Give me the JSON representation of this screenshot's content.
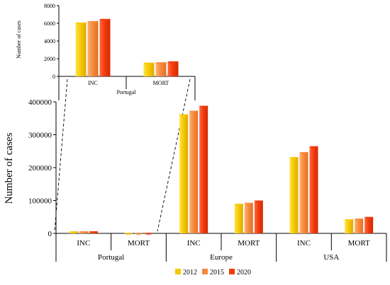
{
  "chart_data": [
    {
      "type": "bar",
      "region": "Portugal",
      "ylabel": "Number of cases",
      "ylim": [
        0,
        8000
      ],
      "yticks": [
        "0",
        "2000",
        "4000",
        "6000",
        "8000"
      ],
      "categories": [
        "INC",
        "MORT"
      ],
      "series": [
        {
          "name": "2012",
          "values": [
            6100,
            1550
          ]
        },
        {
          "name": "2015",
          "values": [
            6250,
            1600
          ]
        },
        {
          "name": "2020",
          "values": [
            6500,
            1700
          ]
        }
      ]
    },
    {
      "type": "bar",
      "ylabel": "Number of cases",
      "ylim": [
        0,
        400000
      ],
      "yticks": [
        "0",
        "100000",
        "200000",
        "300000",
        "400000"
      ],
      "groups": [
        {
          "name": "Portugal",
          "categories": [
            "INC",
            "MORT"
          ]
        },
        {
          "name": "Europe",
          "categories": [
            "INC",
            "MORT"
          ]
        },
        {
          "name": "USA",
          "categories": [
            "INC",
            "MORT"
          ]
        }
      ],
      "series": [
        {
          "name": "2012",
          "values": [
            6100,
            1550,
            362000,
            90000,
            232000,
            43000
          ]
        },
        {
          "name": "2015",
          "values": [
            6250,
            1600,
            373000,
            93000,
            247000,
            45000
          ]
        },
        {
          "name": "2020",
          "values": [
            6500,
            1700,
            388000,
            100000,
            265000,
            50000
          ]
        }
      ],
      "legend": {
        "placement": "bottom"
      }
    }
  ],
  "colors": {
    "2012": "#f5c800",
    "2015": "#f68a3a",
    "2020": "#f13a0e"
  }
}
